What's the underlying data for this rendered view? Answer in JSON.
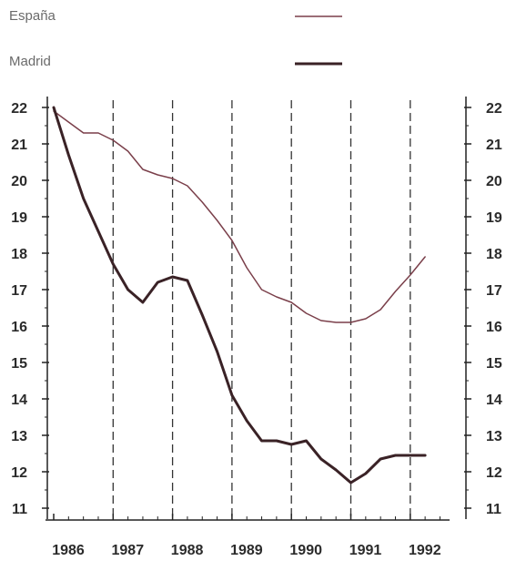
{
  "chart_data": {
    "type": "line",
    "title": "",
    "xlabel": "",
    "ylabel": "",
    "x_tick_labels": [
      "1986",
      "1987",
      "1988",
      "1989",
      "1990",
      "1991",
      "1992"
    ],
    "x_range": [
      1986,
      1993
    ],
    "ylim": [
      11,
      22
    ],
    "y_ticks": [
      11,
      12,
      13,
      14,
      15,
      16,
      17,
      18,
      19,
      20,
      21,
      22
    ],
    "y_ticks_right": [
      11,
      12,
      13,
      14,
      15,
      16,
      17,
      18,
      19,
      20,
      21,
      22
    ],
    "grid": "dashed vertical lines at each year",
    "legend_position": "top-left",
    "series": [
      {
        "name": "España",
        "color": "#7a3f4a",
        "x": [
          1986.0,
          1986.25,
          1986.5,
          1986.75,
          1987.0,
          1987.25,
          1987.5,
          1987.75,
          1988.0,
          1988.25,
          1988.5,
          1988.75,
          1989.0,
          1989.25,
          1989.5,
          1989.75,
          1990.0,
          1990.25,
          1990.5,
          1990.75,
          1991.0,
          1991.25,
          1991.5,
          1991.75,
          1992.0,
          1992.25
        ],
        "values": [
          21.9,
          21.6,
          21.3,
          21.3,
          21.1,
          20.8,
          20.3,
          20.15,
          20.05,
          19.85,
          19.4,
          18.9,
          18.35,
          17.6,
          17.0,
          16.8,
          16.65,
          16.35,
          16.15,
          16.1,
          16.1,
          16.2,
          16.45,
          16.95,
          17.4,
          17.9
        ]
      },
      {
        "name": "Madrid",
        "color": "#3a2226",
        "x": [
          1986.0,
          1986.25,
          1986.5,
          1986.75,
          1987.0,
          1987.25,
          1987.5,
          1987.75,
          1988.0,
          1988.25,
          1988.5,
          1988.75,
          1989.0,
          1989.25,
          1989.5,
          1989.75,
          1990.0,
          1990.25,
          1990.5,
          1990.75,
          1991.0,
          1991.25,
          1991.5,
          1991.75,
          1992.0,
          1992.25
        ],
        "values": [
          22.0,
          20.7,
          19.5,
          18.6,
          17.7,
          17.0,
          16.65,
          17.2,
          17.35,
          17.25,
          16.3,
          15.3,
          14.1,
          13.4,
          12.85,
          12.85,
          12.75,
          12.85,
          12.35,
          12.05,
          11.7,
          11.95,
          12.35,
          12.45,
          12.45,
          12.45
        ]
      }
    ]
  },
  "legend": [
    {
      "label": "España",
      "color": "#7a3f4a"
    },
    {
      "label": "Madrid",
      "color": "#3a2226"
    }
  ]
}
